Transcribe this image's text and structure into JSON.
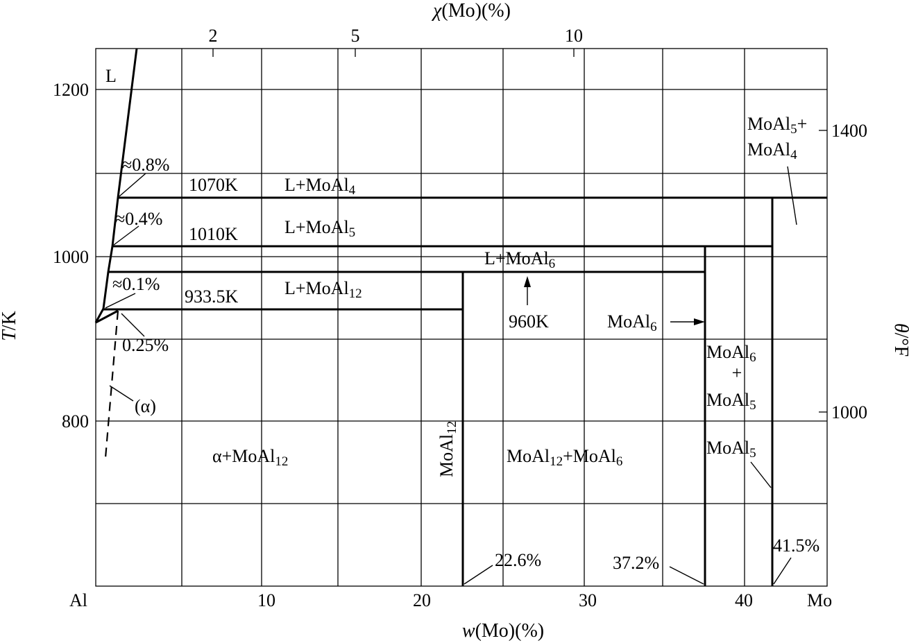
{
  "figure": {
    "top_axis_title_symbol": "χ",
    "top_axis_title_rest": "(Mo)(%)",
    "top_ticks": [
      "2",
      "5",
      "10"
    ],
    "bottom_axis_title_symbol": "w",
    "bottom_axis_title_rest": "(Mo)(%)",
    "bottom_ticks": [
      "10",
      "20",
      "30",
      "40"
    ],
    "bottom_left_end": "Al",
    "bottom_right_end": "Mo",
    "left_axis_title_symbol": "T",
    "left_axis_title_rest": "/K",
    "left_ticks": [
      "1200",
      "1000",
      "800"
    ],
    "right_axis_title_symbol": "θ",
    "right_axis_title_rest": "/°F",
    "right_ticks": [
      "1400",
      "1000"
    ]
  },
  "phase_labels": {
    "L": "L",
    "approx_08": "≈0.8%",
    "approx_04": "≈0.4%",
    "approx_01": "≈0.1%",
    "pct_025": "0.25%",
    "alpha": "(α)",
    "t_1070": "1070K",
    "t_1010": "1010K",
    "t_9335": "933.5K",
    "t_960": "960K",
    "L_plus": "L+MoAl",
    "sub_4": "4",
    "sub_5": "5",
    "sub_6": "6",
    "sub_12": "12",
    "alpha_plus": "α+MoAl",
    "moal": "MoAl",
    "moal12_plus": "MoAl",
    "plus_moal6": "+MoAl",
    "plus_sign": "+",
    "moal5_plus_sym": "+",
    "pct_226": "22.6%",
    "pct_372": "37.2%",
    "pct_415": "41.5%"
  }
}
